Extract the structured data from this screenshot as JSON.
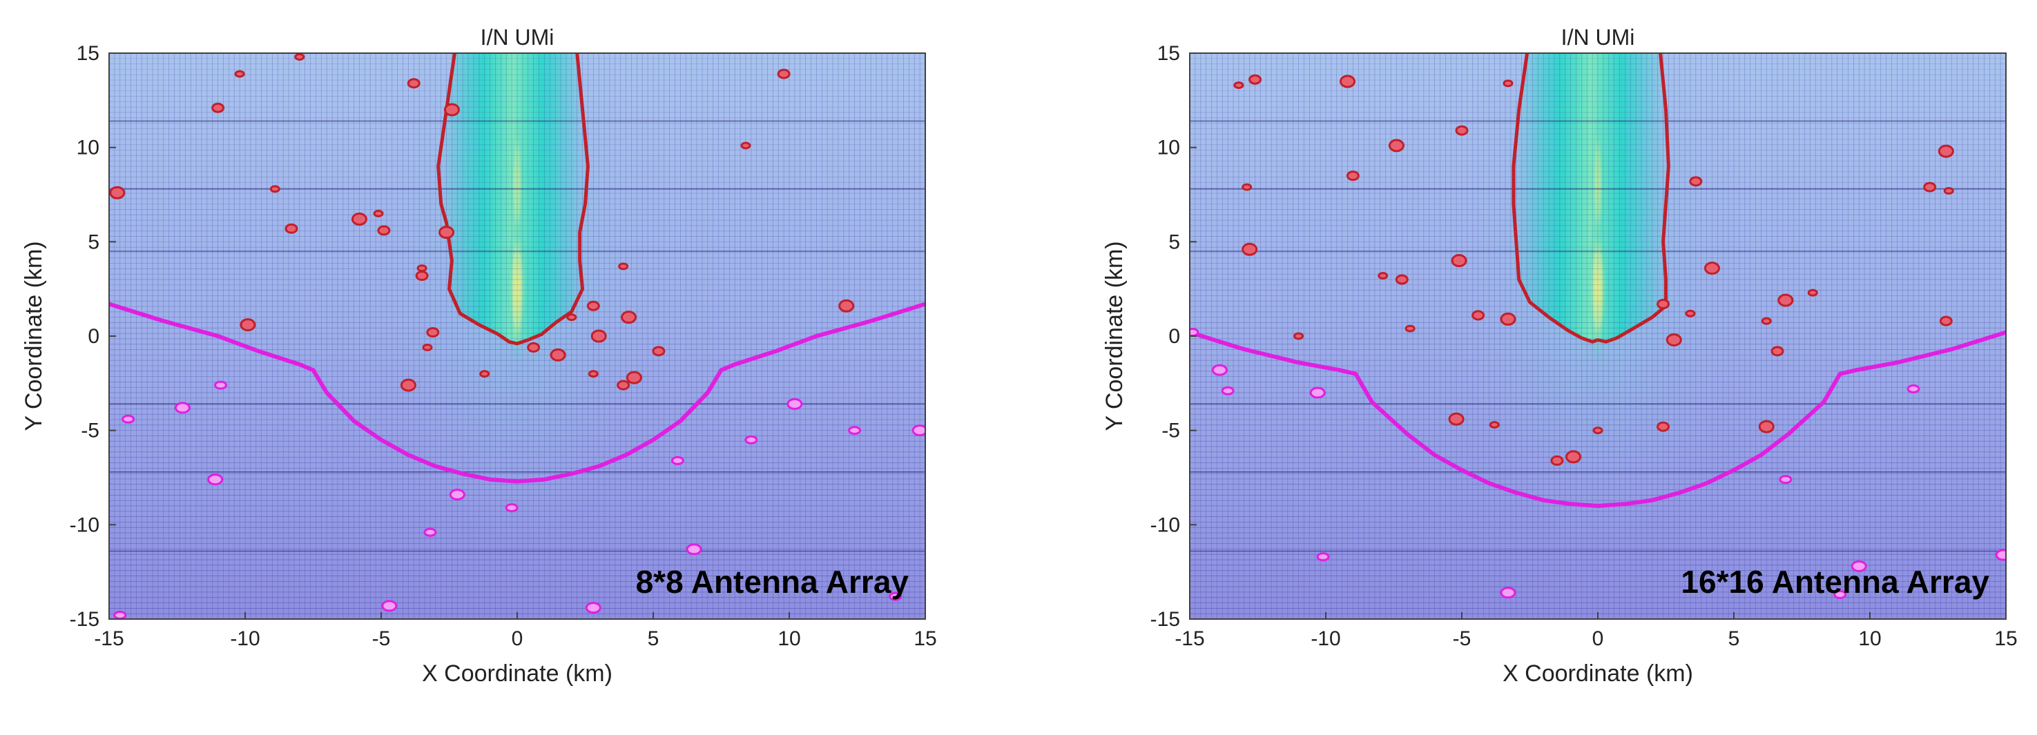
{
  "chart_data": [
    {
      "type": "heatmap",
      "title": "I/N UMi",
      "xlabel": "X Coordinate (km)",
      "ylabel": "Y Coordinate (km)",
      "xlim": [
        -15,
        15
      ],
      "ylim": [
        -15,
        15
      ],
      "xticks": [
        -15,
        -10,
        -5,
        0,
        5,
        10,
        15
      ],
      "yticks": [
        -15,
        -10,
        -5,
        0,
        5,
        10,
        15
      ],
      "annotation": "8*8 Antenna Array",
      "grid": true,
      "colors": {
        "contour_red": "#c0202a",
        "contour_magenta": "#e020e0",
        "beam": "#20d8c8",
        "hot": "#f4f080",
        "background": "#9db4ec"
      },
      "beam_contour": [
        [
          -2.3,
          15
        ],
        [
          -2.6,
          12
        ],
        [
          -2.9,
          9
        ],
        [
          -2.8,
          7
        ],
        [
          -2.6,
          6
        ],
        [
          -2.4,
          4
        ],
        [
          -2.5,
          2.5
        ],
        [
          -2.1,
          1.2
        ],
        [
          -1.4,
          0.6
        ],
        [
          -0.7,
          0.1
        ],
        [
          -0.3,
          -0.3
        ],
        [
          0,
          -0.4
        ],
        [
          0.4,
          -0.2
        ],
        [
          0.9,
          0.1
        ],
        [
          1.4,
          0.7
        ],
        [
          2.0,
          1.3
        ],
        [
          2.4,
          2.5
        ],
        [
          2.3,
          4
        ],
        [
          2.3,
          5.5
        ],
        [
          2.5,
          7
        ],
        [
          2.6,
          9
        ],
        [
          2.4,
          12
        ],
        [
          2.2,
          15
        ]
      ],
      "coverage_contour": [
        [
          -15,
          1.7
        ],
        [
          -13,
          0.8
        ],
        [
          -11,
          0
        ],
        [
          -9.5,
          -0.8
        ],
        [
          -8,
          -1.5
        ],
        [
          -7.5,
          -1.8
        ],
        [
          -7,
          -3
        ],
        [
          -6,
          -4.5
        ],
        [
          -5,
          -5.5
        ],
        [
          -4,
          -6.3
        ],
        [
          -3,
          -6.9
        ],
        [
          -2,
          -7.3
        ],
        [
          -1,
          -7.6
        ],
        [
          0,
          -7.7
        ],
        [
          1,
          -7.6
        ],
        [
          2,
          -7.3
        ],
        [
          3,
          -6.9
        ],
        [
          4,
          -6.3
        ],
        [
          5,
          -5.5
        ],
        [
          6,
          -4.5
        ],
        [
          7,
          -3
        ],
        [
          7.5,
          -1.8
        ],
        [
          8,
          -1.5
        ],
        [
          9.5,
          -0.8
        ],
        [
          11,
          0
        ],
        [
          13,
          0.8
        ],
        [
          15,
          1.7
        ]
      ],
      "red_blobs": [
        [
          -8,
          14.8
        ],
        [
          -3.8,
          13.4
        ],
        [
          -2.4,
          12
        ],
        [
          -10.2,
          13.9
        ],
        [
          -11,
          12.1
        ],
        [
          -14.7,
          7.6
        ],
        [
          -8.9,
          7.8
        ],
        [
          -8.3,
          5.7
        ],
        [
          -5.8,
          6.2
        ],
        [
          -5.1,
          6.5
        ],
        [
          -4.9,
          5.6
        ],
        [
          -2.6,
          5.5
        ],
        [
          -3.5,
          3.6
        ],
        [
          -3.5,
          3.2
        ],
        [
          -9.9,
          0.6
        ],
        [
          -3.3,
          -0.6
        ],
        [
          -3.1,
          0.2
        ],
        [
          -4,
          -2.6
        ],
        [
          -1.2,
          -2
        ],
        [
          0.6,
          -0.6
        ],
        [
          1.5,
          -1
        ],
        [
          2,
          1
        ],
        [
          2.8,
          1.6
        ],
        [
          3,
          0
        ],
        [
          2.8,
          -2
        ],
        [
          3.9,
          -2.6
        ],
        [
          4.1,
          1
        ],
        [
          3.9,
          3.7
        ],
        [
          5.2,
          -0.8
        ],
        [
          4.3,
          -2.2
        ],
        [
          8.4,
          10.1
        ],
        [
          9.8,
          13.9
        ],
        [
          12.1,
          1.6
        ]
      ],
      "magenta_blobs": [
        [
          -14.3,
          -4.4
        ],
        [
          -12.3,
          -3.8
        ],
        [
          -10.9,
          -2.6
        ],
        [
          -11.1,
          -7.6
        ],
        [
          -14.6,
          -14.8
        ],
        [
          -4.7,
          -14.3
        ],
        [
          -3.2,
          -10.4
        ],
        [
          -2.2,
          -8.4
        ],
        [
          -0.2,
          -9.1
        ],
        [
          2.8,
          -14.4
        ],
        [
          5.9,
          -6.6
        ],
        [
          6.5,
          -11.3
        ],
        [
          8.6,
          -5.5
        ],
        [
          10.2,
          -3.6
        ],
        [
          12.4,
          -5
        ],
        [
          14.8,
          -5
        ],
        [
          13.9,
          -13.8
        ]
      ]
    },
    {
      "type": "heatmap",
      "title": "I/N UMi",
      "xlabel": "X Coordinate (km)",
      "ylabel": "Y Coordinate (km)",
      "xlim": [
        -15,
        15
      ],
      "ylim": [
        -15,
        15
      ],
      "xticks": [
        -15,
        -10,
        -5,
        0,
        5,
        10,
        15
      ],
      "yticks": [
        -15,
        -10,
        -5,
        0,
        5,
        10,
        15
      ],
      "annotation": "16*16 Antenna Array",
      "grid": true,
      "colors": {
        "contour_red": "#c0202a",
        "contour_magenta": "#e020e0",
        "beam": "#20d8c8",
        "hot": "#f4f080",
        "background": "#9db4ec"
      },
      "beam_contour": [
        [
          -2.6,
          15
        ],
        [
          -2.9,
          12
        ],
        [
          -3.1,
          9
        ],
        [
          -3.1,
          7
        ],
        [
          -3.0,
          5
        ],
        [
          -2.9,
          3
        ],
        [
          -2.5,
          1.8
        ],
        [
          -1.8,
          1.0
        ],
        [
          -1.1,
          0.3
        ],
        [
          -0.6,
          -0.1
        ],
        [
          -0.2,
          -0.3
        ],
        [
          0,
          -0.2
        ],
        [
          0.3,
          -0.3
        ],
        [
          0.7,
          -0.1
        ],
        [
          1.3,
          0.4
        ],
        [
          2.0,
          1.0
        ],
        [
          2.5,
          1.6
        ],
        [
          2.5,
          3
        ],
        [
          2.4,
          5
        ],
        [
          2.5,
          7
        ],
        [
          2.6,
          9
        ],
        [
          2.5,
          12
        ],
        [
          2.3,
          15
        ]
      ],
      "coverage_contour": [
        [
          -15,
          0.2
        ],
        [
          -13,
          -0.7
        ],
        [
          -11,
          -1.4
        ],
        [
          -9.5,
          -1.8
        ],
        [
          -8.9,
          -2
        ],
        [
          -8.3,
          -3.5
        ],
        [
          -7,
          -5.2
        ],
        [
          -6,
          -6.3
        ],
        [
          -5,
          -7.1
        ],
        [
          -4,
          -7.8
        ],
        [
          -3,
          -8.3
        ],
        [
          -2,
          -8.7
        ],
        [
          -1,
          -8.9
        ],
        [
          0,
          -9
        ],
        [
          1,
          -8.9
        ],
        [
          2,
          -8.7
        ],
        [
          3,
          -8.3
        ],
        [
          4,
          -7.8
        ],
        [
          5,
          -7.1
        ],
        [
          6,
          -6.3
        ],
        [
          7,
          -5.2
        ],
        [
          8.3,
          -3.5
        ],
        [
          8.9,
          -2
        ],
        [
          9.5,
          -1.8
        ],
        [
          11,
          -1.4
        ],
        [
          13,
          -0.7
        ],
        [
          15,
          0.2
        ]
      ],
      "red_blobs": [
        [
          -13.2,
          13.3
        ],
        [
          -12.6,
          13.6
        ],
        [
          -9.2,
          13.5
        ],
        [
          -3.3,
          13.4
        ],
        [
          -5,
          10.9
        ],
        [
          -7.4,
          10.1
        ],
        [
          -12.9,
          7.9
        ],
        [
          -9,
          8.5
        ],
        [
          -12.8,
          4.6
        ],
        [
          -7.9,
          3.2
        ],
        [
          -7.2,
          3
        ],
        [
          -5.1,
          4
        ],
        [
          -6.9,
          0.4
        ],
        [
          -4.4,
          1.1
        ],
        [
          -3.3,
          0.9
        ],
        [
          -11,
          0
        ],
        [
          2.4,
          1.7
        ],
        [
          2.8,
          -0.2
        ],
        [
          3.4,
          1.2
        ],
        [
          3.6,
          8.2
        ],
        [
          4.2,
          3.6
        ],
        [
          6.2,
          0.8
        ],
        [
          6.6,
          -0.8
        ],
        [
          6.9,
          1.9
        ],
        [
          7.9,
          2.3
        ],
        [
          12.2,
          7.9
        ],
        [
          12.8,
          9.8
        ],
        [
          12.9,
          7.7
        ],
        [
          12.8,
          0.8
        ],
        [
          -5.2,
          -4.4
        ],
        [
          -3.8,
          -4.7
        ],
        [
          -1.5,
          -6.6
        ],
        [
          -0.9,
          -6.4
        ],
        [
          0,
          -5
        ],
        [
          2.4,
          -4.8
        ],
        [
          6.2,
          -4.8
        ]
      ],
      "magenta_blobs": [
        [
          -14.9,
          0.2
        ],
        [
          -13.9,
          -1.8
        ],
        [
          -13.6,
          -2.9
        ],
        [
          -10.3,
          -3
        ],
        [
          -10.1,
          -11.7
        ],
        [
          -3.3,
          -13.6
        ],
        [
          6.9,
          -7.6
        ],
        [
          9.6,
          -12.2
        ],
        [
          11.6,
          -2.8
        ],
        [
          14.9,
          -11.6
        ],
        [
          8.9,
          -13.7
        ]
      ]
    }
  ]
}
